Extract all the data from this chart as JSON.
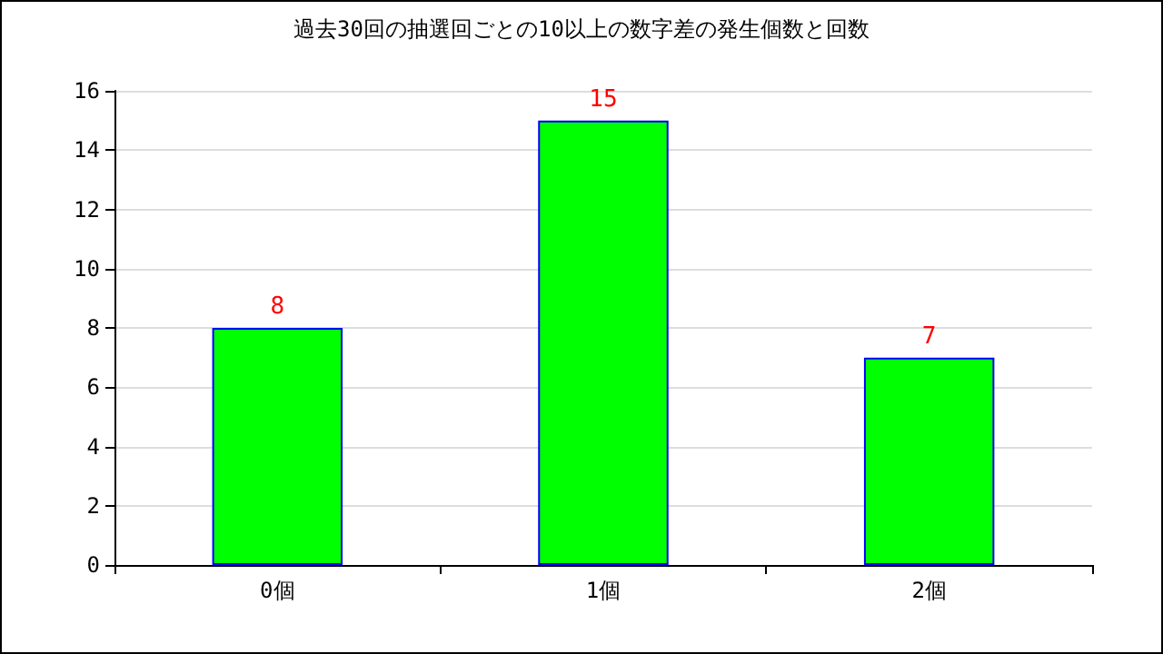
{
  "chart_data": {
    "type": "bar",
    "title": "過去30回の抽選回ごとの10以上の数字差の発生個数と回数",
    "categories": [
      "0個",
      "1個",
      "2個"
    ],
    "values": [
      8,
      15,
      7
    ],
    "color": "#00ff00",
    "ylim": [
      0,
      16
    ],
    "yticks": [
      0,
      2,
      4,
      6,
      8,
      10,
      12,
      14,
      16
    ],
    "grid": "y",
    "data_labels": true
  }
}
